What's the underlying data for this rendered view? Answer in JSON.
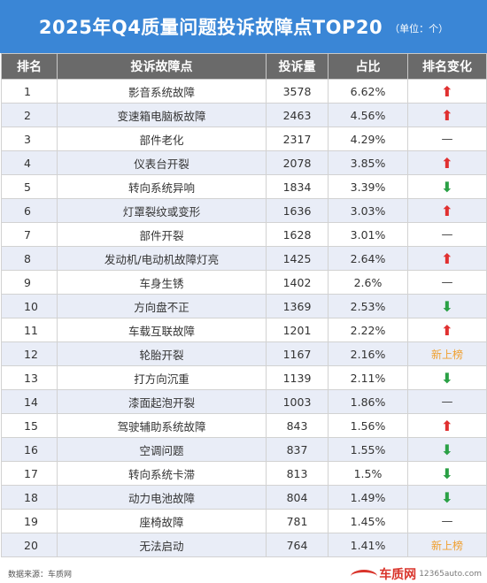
{
  "title": {
    "main": "2025年Q4质量问题投诉故障点TOP20",
    "unit": "（单位：个）"
  },
  "table": {
    "headers": [
      "排名",
      "投诉故障点",
      "投诉量",
      "占比",
      "排名变化"
    ],
    "rows": [
      {
        "rank": "1",
        "fault": "影音系统故障",
        "count": "3578",
        "share": "6.62%",
        "change": "up",
        "change_text": ""
      },
      {
        "rank": "2",
        "fault": "变速箱电脑板故障",
        "count": "2463",
        "share": "4.56%",
        "change": "up",
        "change_text": ""
      },
      {
        "rank": "3",
        "fault": "部件老化",
        "count": "2317",
        "share": "4.29%",
        "change": "same",
        "change_text": ""
      },
      {
        "rank": "4",
        "fault": "仪表台开裂",
        "count": "2078",
        "share": "3.85%",
        "change": "up",
        "change_text": ""
      },
      {
        "rank": "5",
        "fault": "转向系统异响",
        "count": "1834",
        "share": "3.39%",
        "change": "down",
        "change_text": ""
      },
      {
        "rank": "6",
        "fault": "灯罩裂纹或变形",
        "count": "1636",
        "share": "3.03%",
        "change": "up",
        "change_text": ""
      },
      {
        "rank": "7",
        "fault": "部件开裂",
        "count": "1628",
        "share": "3.01%",
        "change": "same",
        "change_text": ""
      },
      {
        "rank": "8",
        "fault": "发动机/电动机故障灯亮",
        "count": "1425",
        "share": "2.64%",
        "change": "up",
        "change_text": ""
      },
      {
        "rank": "9",
        "fault": "车身生锈",
        "count": "1402",
        "share": "2.6%",
        "change": "same",
        "change_text": ""
      },
      {
        "rank": "10",
        "fault": "方向盘不正",
        "count": "1369",
        "share": "2.53%",
        "change": "down",
        "change_text": ""
      },
      {
        "rank": "11",
        "fault": "车载互联故障",
        "count": "1201",
        "share": "2.22%",
        "change": "up",
        "change_text": ""
      },
      {
        "rank": "12",
        "fault": "轮胎开裂",
        "count": "1167",
        "share": "2.16%",
        "change": "new",
        "change_text": "新上榜"
      },
      {
        "rank": "13",
        "fault": "打方向沉重",
        "count": "1139",
        "share": "2.11%",
        "change": "down",
        "change_text": ""
      },
      {
        "rank": "14",
        "fault": "漆面起泡开裂",
        "count": "1003",
        "share": "1.86%",
        "change": "same",
        "change_text": ""
      },
      {
        "rank": "15",
        "fault": "驾驶辅助系统故障",
        "count": "843",
        "share": "1.56%",
        "change": "up",
        "change_text": ""
      },
      {
        "rank": "16",
        "fault": "空调问题",
        "count": "837",
        "share": "1.55%",
        "change": "down",
        "change_text": ""
      },
      {
        "rank": "17",
        "fault": "转向系统卡滞",
        "count": "813",
        "share": "1.5%",
        "change": "down",
        "change_text": ""
      },
      {
        "rank": "18",
        "fault": "动力电池故障",
        "count": "804",
        "share": "1.49%",
        "change": "down",
        "change_text": ""
      },
      {
        "rank": "19",
        "fault": "座椅故障",
        "count": "781",
        "share": "1.45%",
        "change": "same",
        "change_text": ""
      },
      {
        "rank": "20",
        "fault": "无法启动",
        "count": "764",
        "share": "1.41%",
        "change": "new",
        "change_text": "新上榜"
      }
    ]
  },
  "footer": {
    "source": "数据来源：车质网",
    "logo_text": "车质网",
    "logo_url": "12365auto.com"
  },
  "colors": {
    "title_bg": "#3a86d6",
    "header_bg": "#6a6a6a",
    "stripe_bg": "#e9edf7",
    "up": "#e03030",
    "down": "#2aa045",
    "new": "#f0a030",
    "logo": "#d9342b"
  },
  "icons": {
    "up": "arrow-up-icon",
    "down": "arrow-down-icon",
    "same": "dash-icon"
  }
}
